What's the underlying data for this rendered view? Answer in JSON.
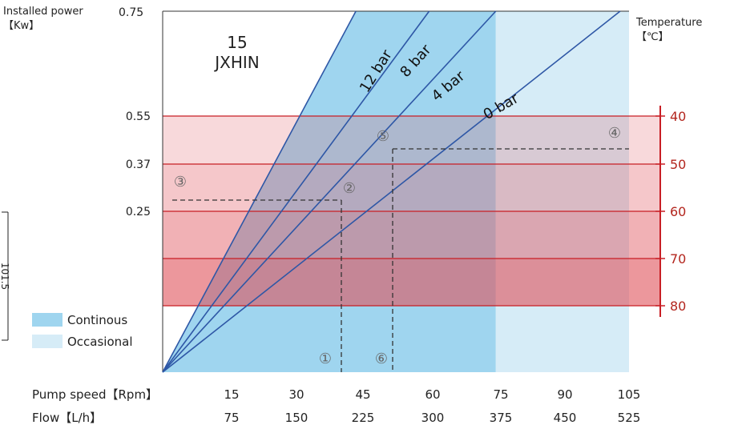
{
  "header": {
    "power_axis_title_line1": "Installed power",
    "power_axis_title_line2": "【Kw】",
    "temp_axis_title_line1": "Temperature",
    "temp_axis_title_line2": "【℃】"
  },
  "model": {
    "line1": "15",
    "line2": "JXHIN"
  },
  "left_fragment": "101.5",
  "bottom_axis": {
    "speed_label": "Pump speed【Rpm】",
    "flow_label": "Flow【L/h】"
  },
  "legend": {
    "continuous_label": "Continous",
    "occasional_label": "Occasional"
  },
  "markers": [
    "①",
    "②",
    "③",
    "④",
    "⑤",
    "⑥"
  ],
  "colors": {
    "continuous": "#9fd5ef",
    "occasional": "#d6ecf7",
    "pressure_line": "#2e57a6",
    "temp_band_base": "#e0525a",
    "temp_axis": "#c81e24",
    "temp_text": "#b3261e"
  },
  "chart_data": {
    "type": "line",
    "x_speed_ticks": [
      15,
      30,
      45,
      60,
      75,
      90,
      105
    ],
    "x_flow_ticks": [
      75,
      150,
      225,
      300,
      375,
      450,
      525
    ],
    "x_range_rpm": [
      0,
      105
    ],
    "y_range_kw_top": 0.75,
    "y_ticks_kw": [
      "0.55",
      "0.37",
      "0.25"
    ],
    "power_top_label": "0.75",
    "temperature_ticks_c": [
      "40",
      "50",
      "60",
      "70",
      "80"
    ],
    "series": [
      {
        "name": "12 bar",
        "points": [
          [
            0,
            0
          ],
          [
            43.5,
            0.75
          ]
        ]
      },
      {
        "name": "8 bar",
        "points": [
          [
            0,
            0
          ],
          [
            60,
            0.75
          ]
        ]
      },
      {
        "name": "4 bar",
        "points": [
          [
            0,
            0
          ],
          [
            75,
            0.75
          ]
        ]
      },
      {
        "name": "0 bar",
        "points": [
          [
            0,
            0
          ],
          [
            103,
            0.75
          ]
        ]
      }
    ],
    "regions": {
      "continuous_max_rpm": 75,
      "occasional_max_rpm": 105
    },
    "example_readings": [
      {
        "marker": "③",
        "kw": 0.29,
        "rpm": 40
      },
      {
        "marker": "④",
        "temperature_c": 47,
        "rpm": 52
      }
    ]
  }
}
